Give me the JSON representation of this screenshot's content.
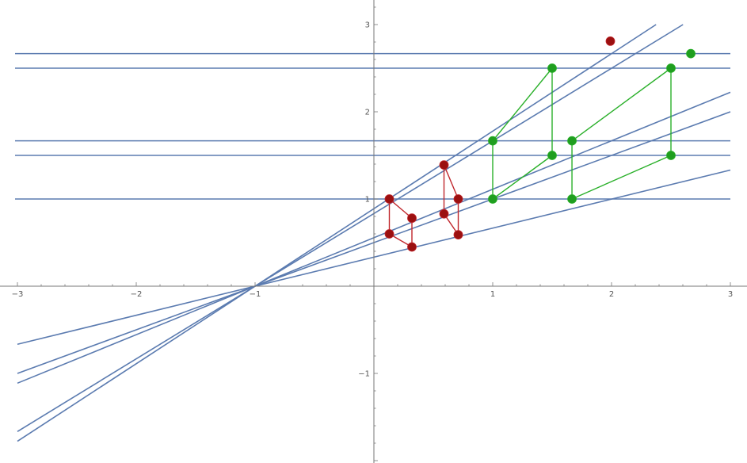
{
  "chart_data": {
    "type": "line",
    "title": "",
    "xlabel": "",
    "ylabel": "",
    "xlim": [
      -3,
      3
    ],
    "ylim": [
      -2,
      3.2
    ],
    "grid": false,
    "x_ticks": [
      -3,
      -2,
      -1,
      1,
      2,
      3
    ],
    "y_ticks": [
      -1,
      1,
      2,
      3
    ],
    "x_tick_labels": [
      "−3",
      "−2",
      "−1",
      "1",
      "2",
      "3"
    ],
    "y_tick_labels": [
      "−1",
      "1",
      "2",
      "3"
    ],
    "colors": {
      "lines": "#5b7bb0",
      "red_shape": "#c0262c",
      "red_marker": "#9b1010",
      "green_shape": "#2ab02a",
      "green_marker": "#1f9e1f",
      "axes": "#777777"
    },
    "horizontal_lines": [
      1.0,
      1.5,
      1.667,
      2.5,
      2.667
    ],
    "rays": {
      "through": [
        -1,
        0
      ],
      "slopes": [
        0.333,
        0.5,
        0.556,
        0.833,
        0.889
      ]
    },
    "red_points": [
      [
        0.13,
        1.0
      ],
      [
        0.13,
        0.6
      ],
      [
        0.32,
        0.78
      ],
      [
        0.32,
        0.45
      ],
      [
        0.59,
        1.39
      ],
      [
        0.59,
        0.83
      ],
      [
        0.71,
        1.0
      ],
      [
        0.71,
        0.59
      ],
      [
        1.99,
        2.81
      ]
    ],
    "red_edges": [
      [
        0,
        1
      ],
      [
        0,
        2
      ],
      [
        1,
        3
      ],
      [
        2,
        3
      ],
      [
        4,
        5
      ],
      [
        4,
        6
      ],
      [
        5,
        7
      ],
      [
        6,
        7
      ]
    ],
    "green_points": [
      [
        1.0,
        1.667
      ],
      [
        1.0,
        1.0
      ],
      [
        1.5,
        2.5
      ],
      [
        1.5,
        1.5
      ],
      [
        1.667,
        1.667
      ],
      [
        1.667,
        1.0
      ],
      [
        2.5,
        2.5
      ],
      [
        2.5,
        1.5
      ],
      [
        2.667,
        2.667
      ]
    ],
    "green_edges": [
      [
        0,
        1
      ],
      [
        0,
        2
      ],
      [
        1,
        3
      ],
      [
        2,
        3
      ],
      [
        4,
        5
      ],
      [
        4,
        6
      ],
      [
        5,
        7
      ],
      [
        6,
        7
      ]
    ]
  }
}
